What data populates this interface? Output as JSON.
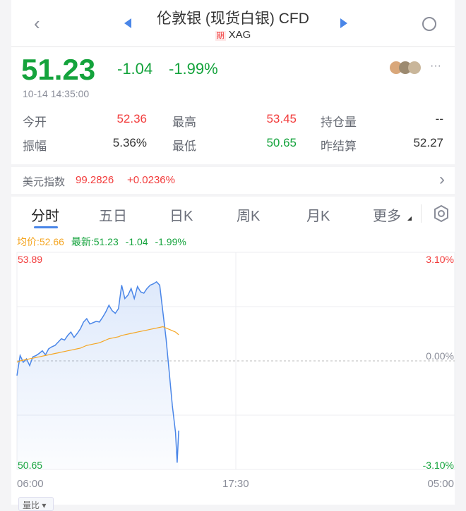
{
  "header": {
    "title": "伦敦银 (现货白银) CFD",
    "badge": "期",
    "symbol": "XAG"
  },
  "quote": {
    "price": "51.23",
    "change": "-1.04",
    "change_pct": "-1.99%",
    "time": "10-14 14:35:00",
    "more": "···"
  },
  "stats": [
    {
      "label": "今开",
      "value": "52.36",
      "color": "red"
    },
    {
      "label": "最高",
      "value": "53.45",
      "color": "red"
    },
    {
      "label": "持仓量",
      "value": "--",
      "color": "dark"
    },
    {
      "label": "振幅",
      "value": "5.36%",
      "color": "dark"
    },
    {
      "label": "最低",
      "value": "50.65",
      "color": "green"
    },
    {
      "label": "昨结算",
      "value": "52.27",
      "color": "dark"
    }
  ],
  "index": {
    "name": "美元指数",
    "value": "99.2826",
    "change": "+0.0236%"
  },
  "tabs": [
    "分时",
    "五日",
    "日K",
    "周K",
    "月K",
    "更多"
  ],
  "chart_legend": {
    "avg": "均价:52.66",
    "latest": "最新:51.23",
    "change": "-1.04",
    "pct": "-1.99%"
  },
  "bottom_button": "量比",
  "colors": {
    "up": "#f23c3c",
    "down": "#14a33c",
    "line": "#4a86e8",
    "avg": "#f5a623",
    "accent": "#4a86e8"
  },
  "chart_data": {
    "type": "line",
    "y_left_ticks": [
      "53.89",
      "50.65"
    ],
    "y_right_ticks": [
      "3.10%",
      "0.00%",
      "-3.10%"
    ],
    "x_ticks": [
      "06:00",
      "17:30",
      "05:00"
    ],
    "ylim": [
      50.65,
      53.89
    ],
    "reference": 52.27,
    "x_minutes_from_0600_range": [
      0,
      1380
    ],
    "x_minutes": [
      0,
      10,
      20,
      30,
      40,
      50,
      60,
      70,
      80,
      90,
      100,
      110,
      120,
      130,
      140,
      150,
      160,
      170,
      180,
      190,
      200,
      210,
      220,
      230,
      240,
      250,
      260,
      270,
      280,
      290,
      300,
      310,
      320,
      330,
      340,
      350,
      360,
      370,
      380,
      390,
      400,
      410,
      420,
      430,
      440,
      450,
      460,
      470,
      480,
      490,
      500,
      505,
      510
    ],
    "series": [
      {
        "values": [
          52.05,
          52.35,
          52.25,
          52.3,
          52.2,
          52.33,
          52.35,
          52.38,
          52.42,
          52.36,
          52.45,
          52.48,
          52.5,
          52.55,
          52.6,
          52.58,
          52.65,
          52.7,
          52.62,
          52.68,
          52.75,
          52.85,
          52.9,
          52.82,
          52.84,
          52.86,
          52.85,
          52.92,
          53.0,
          53.1,
          53.02,
          52.98,
          53.05,
          53.4,
          53.2,
          53.25,
          53.35,
          53.2,
          53.38,
          53.3,
          53.28,
          53.35,
          53.4,
          53.42,
          53.45,
          53.4,
          53.0,
          52.6,
          52.1,
          51.6,
          51.2,
          50.75,
          51.23
        ]
      },
      {
        "values": [
          52.25,
          52.27,
          52.28,
          52.29,
          52.3,
          52.31,
          52.32,
          52.33,
          52.34,
          52.35,
          52.36,
          52.37,
          52.38,
          52.39,
          52.4,
          52.41,
          52.42,
          52.43,
          52.44,
          52.45,
          52.46,
          52.48,
          52.5,
          52.51,
          52.52,
          52.53,
          52.54,
          52.56,
          52.58,
          52.6,
          52.61,
          52.62,
          52.63,
          52.65,
          52.66,
          52.67,
          52.68,
          52.69,
          52.7,
          52.71,
          52.72,
          52.73,
          52.74,
          52.75,
          52.76,
          52.77,
          52.78,
          52.76,
          52.74,
          52.72,
          52.7,
          52.68,
          52.66
        ]
      }
    ]
  }
}
